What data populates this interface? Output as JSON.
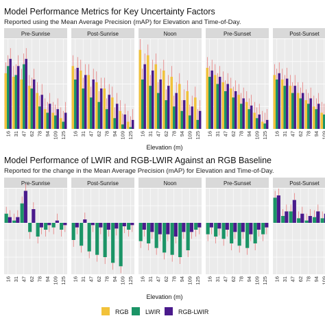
{
  "colors": {
    "RGB": "#f2c23a",
    "LWIR": "#1b9466",
    "RGB-LWIR": "#4a1a8c",
    "panel_bg": "#ebebeb",
    "strip_bg": "#d9d9d9",
    "grid": "#ffffff",
    "errorbar": "#e85a5a"
  },
  "legend": {
    "items": [
      "RGB",
      "LWIR",
      "RGB-LWIR"
    ]
  },
  "chart_data": [
    {
      "type": "bar",
      "title": "Model Performance Metrics for Key Uncertainty Factors",
      "subtitle": "Reported using the Mean Average Precision (mAP) for Elevation and Time-of-Day.",
      "xlabel": "Elevation (m)",
      "ylabel": "",
      "categories": [
        "16",
        "31",
        "47",
        "62",
        "78",
        "94",
        "109",
        "125"
      ],
      "facets": [
        "Pre-Sunrise",
        "Post-Sunrise",
        "Noon",
        "Pre-Sunset",
        "Post-Sunset"
      ],
      "ylim": [
        0,
        1
      ],
      "grid": true,
      "series": [
        {
          "name": "RGB",
          "values": [
            [
              0.62,
              0.58,
              0.55,
              0.48,
              0.4,
              0.22,
              0.18,
              0.12
            ],
            [
              0.7,
              0.65,
              0.6,
              0.52,
              0.45,
              0.35,
              0.2,
              0.08
            ],
            [
              0.88,
              0.82,
              0.72,
              0.65,
              0.58,
              0.5,
              0.42,
              0.35
            ],
            [
              0.68,
              0.6,
              0.52,
              0.45,
              0.38,
              0.3,
              0.18,
              0.08
            ],
            [
              0.6,
              0.55,
              0.48,
              0.4,
              0.32,
              0.25,
              0.18,
              0.12
            ]
          ]
        },
        {
          "name": "LWIR",
          "values": [
            [
              0.7,
              0.6,
              0.72,
              0.45,
              0.25,
              0.18,
              0.15,
              0.08
            ],
            [
              0.55,
              0.45,
              0.35,
              0.3,
              0.22,
              0.12,
              0.05,
              0.02
            ],
            [
              0.55,
              0.48,
              0.4,
              0.32,
              0.25,
              0.2,
              0.15,
              0.1
            ],
            [
              0.58,
              0.5,
              0.42,
              0.35,
              0.28,
              0.22,
              0.12,
              0.06
            ],
            [
              0.55,
              0.48,
              0.4,
              0.34,
              0.28,
              0.22,
              0.16,
              0.1
            ]
          ]
        },
        {
          "name": "RGB-LWIR",
          "values": [
            [
              0.78,
              0.7,
              0.78,
              0.55,
              0.38,
              0.28,
              0.22,
              0.18
            ],
            [
              0.68,
              0.6,
              0.55,
              0.45,
              0.38,
              0.28,
              0.16,
              0.1
            ],
            [
              0.72,
              0.65,
              0.55,
              0.48,
              0.4,
              0.32,
              0.25,
              0.2
            ],
            [
              0.65,
              0.58,
              0.5,
              0.42,
              0.34,
              0.26,
              0.16,
              0.1
            ],
            [
              0.62,
              0.56,
              0.48,
              0.4,
              0.34,
              0.28,
              0.22,
              0.15
            ]
          ]
        }
      ]
    },
    {
      "type": "bar",
      "title": "Model Performance of LWIR and RGB-LWIR Against an RGB Baseline",
      "subtitle": "Reported for the change in the Mean Average Precision (mAP) for Elevation and Time-of-Day.",
      "xlabel": "Elevation (m)",
      "ylabel": "",
      "categories": [
        "16",
        "31",
        "47",
        "62",
        "78",
        "94",
        "109",
        "125"
      ],
      "facets": [
        "Pre-Sunrise",
        "Post-Sunrise",
        "Noon",
        "Pre-Sunset",
        "Post-Sunset"
      ],
      "ylim": [
        -0.45,
        0.3
      ],
      "grid": true,
      "series": [
        {
          "name": "LWIR",
          "values": [
            [
              0.08,
              0.02,
              0.17,
              -0.08,
              -0.12,
              -0.06,
              -0.04,
              -0.06
            ],
            [
              -0.15,
              -0.2,
              -0.25,
              -0.28,
              -0.3,
              -0.35,
              -0.38,
              -0.06
            ],
            [
              -0.16,
              -0.18,
              -0.22,
              -0.26,
              -0.28,
              -0.3,
              -0.24,
              -0.06
            ],
            [
              -0.1,
              -0.12,
              -0.14,
              -0.18,
              -0.2,
              -0.22,
              -0.18,
              -0.1
            ],
            [
              0.22,
              0.06,
              0.1,
              0.04,
              0.02,
              0.05,
              0.04,
              0.06
            ]
          ]
        },
        {
          "name": "RGB-LWIR",
          "values": [
            [
              0.05,
              0.05,
              0.28,
              0.12,
              -0.04,
              -0.02,
              0.02,
              -0.02
            ],
            [
              -0.04,
              0.03,
              -0.02,
              -0.04,
              -0.06,
              -0.05,
              -0.03,
              -0.02
            ],
            [
              -0.06,
              -0.08,
              -0.1,
              -0.1,
              -0.12,
              -0.08,
              -0.08,
              -0.04
            ],
            [
              -0.04,
              -0.05,
              -0.06,
              -0.08,
              -0.08,
              -0.1,
              -0.06,
              -0.04
            ],
            [
              0.24,
              0.1,
              0.2,
              0.08,
              0.06,
              0.1,
              0.08,
              0.04
            ]
          ]
        }
      ]
    }
  ]
}
